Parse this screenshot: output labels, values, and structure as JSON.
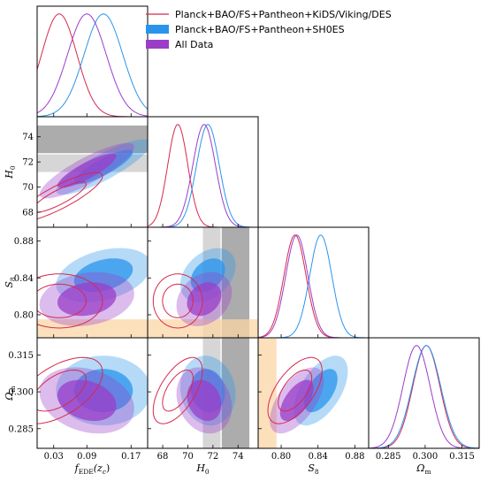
{
  "chart_data": {
    "type": "triangle-corner",
    "parameters": [
      {
        "key": "f",
        "label": "f",
        "label_sub": "EDE",
        "label_suffix": "(z",
        "label_suffix_sub": "c",
        "label_end": ")",
        "ticks": [
          0.03,
          0.09,
          0.17
        ],
        "tick_labels": [
          "0.03",
          "0.09",
          "0.17"
        ],
        "lim": [
          0.0,
          0.2
        ]
      },
      {
        "key": "H0",
        "label": "H",
        "label_sub": "0",
        "ticks": [
          68,
          70,
          72,
          74
        ],
        "tick_labels": [
          "68",
          "70",
          "72",
          "74"
        ],
        "lim": [
          66.8,
          75.6
        ]
      },
      {
        "key": "S8",
        "label": "S",
        "label_sub": "8",
        "ticks": [
          0.8,
          0.84,
          0.88
        ],
        "tick_labels": [
          "0.80",
          "0.84",
          "0.88"
        ],
        "lim": [
          0.775,
          0.895
        ]
      },
      {
        "key": "Om",
        "label": "Ω",
        "label_sub": "m",
        "ticks": [
          0.285,
          0.3,
          0.315
        ],
        "tick_labels": [
          "0.285",
          "0.300",
          "0.315"
        ],
        "lim": [
          0.277,
          0.322
        ]
      }
    ],
    "legend": {
      "placement": "top-right",
      "entries": [
        {
          "label": "Planck+BAO/FS+Pantheon+KiDS/Viking/DES",
          "style": "line",
          "color": "#d6294e"
        },
        {
          "label": "Planck+BAO/FS+Pantheon+SH0ES",
          "style": "patch",
          "color": "#2a94ec"
        },
        {
          "label": "All Data",
          "style": "patch",
          "color": "#9a3ec8"
        }
      ]
    },
    "series": [
      {
        "id": "kids",
        "fill": false,
        "color": "#d6294e",
        "means": [
          0.04,
          69.2,
          0.815,
          0.3005
        ],
        "sigmas": [
          0.032,
          0.8,
          0.012,
          0.0055
        ],
        "corr": {
          "0-1": 0.85,
          "0-2": 0.0,
          "0-3": 0.55,
          "1-2": 0.0,
          "1-3": 0.6,
          "2-3": 0.6
        }
      },
      {
        "id": "sh0es",
        "fill": true,
        "color": "#2a94ec",
        "means": [
          0.12,
          71.6,
          0.843,
          0.3005
        ],
        "sigmas": [
          0.035,
          0.9,
          0.012,
          0.0058
        ],
        "corr": {
          "0-1": 0.85,
          "0-2": 0.35,
          "0-3": 0.0,
          "1-2": 0.35,
          "1-3": -0.1,
          "2-3": 0.55
        }
      },
      {
        "id": "all",
        "fill": true,
        "color": "#9a3ec8",
        "means": [
          0.09,
          71.3,
          0.817,
          0.2965
        ],
        "sigmas": [
          0.035,
          0.9,
          0.012,
          0.0055
        ],
        "corr": {
          "0-1": 0.85,
          "0-2": 0.2,
          "0-3": -0.25,
          "1-2": 0.25,
          "1-3": -0.2,
          "2-3": 0.6
        }
      }
    ],
    "bands": [
      {
        "param": "H0",
        "center": 73.8,
        "half_width": 1.1,
        "color": "#909090"
      },
      {
        "param": "H0",
        "center": 71.9,
        "half_width": 0.7,
        "color": "#c8c8c8"
      },
      {
        "param": "S8",
        "center": 0.782,
        "half_width": 0.013,
        "color": "#fbd5a5"
      }
    ],
    "band_panels": {
      "H0": [
        "1-0",
        "2-1",
        "3-1"
      ],
      "S8": [
        "2-0",
        "2-1",
        "3-2"
      ]
    }
  }
}
